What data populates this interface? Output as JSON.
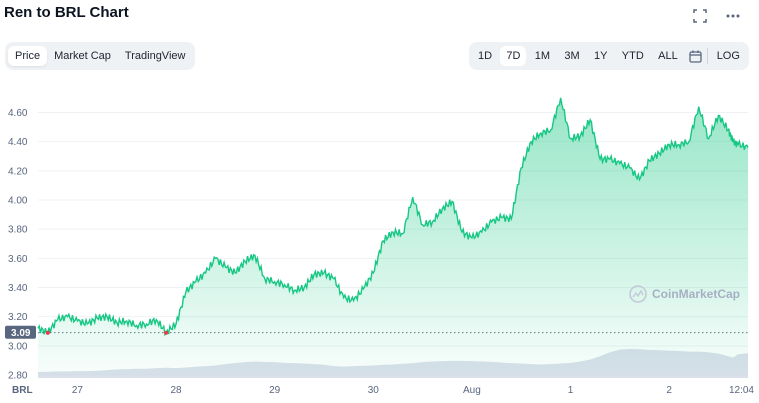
{
  "header": {
    "title": "Ren to BRL Chart",
    "expand_icon": "expand-icon",
    "more_icon": "more-icon"
  },
  "tabs": [
    "Price",
    "Market Cap",
    "TradingView"
  ],
  "active_tab": "Price",
  "ranges": [
    "1D",
    "7D",
    "1M",
    "3M",
    "1Y",
    "YTD",
    "ALL"
  ],
  "active_range": "7D",
  "calendar_icon": "calendar-icon",
  "log_label": "LOG",
  "watermark": "CoinMarketCap",
  "colors": {
    "line": "#16c784",
    "area_top": "#16c784",
    "volume": "#cfd6e4",
    "low_marker": "#ea3943"
  },
  "chart_data": {
    "type": "line",
    "title": "Ren to BRL Chart",
    "currency_label": "BRL",
    "ylim": [
      2.8,
      4.72
    ],
    "y_ticks": [
      "4.60",
      "4.40",
      "4.20",
      "4.00",
      "3.80",
      "3.60",
      "3.40",
      "3.20",
      "3.00",
      "2.80"
    ],
    "y_tick_values": [
      4.6,
      4.4,
      4.2,
      4.0,
      3.8,
      3.6,
      3.4,
      3.2,
      3.0,
      2.8
    ],
    "current_price_label": "3.09",
    "reference_value": 3.09,
    "x_ticks": [
      "27",
      "28",
      "29",
      "30",
      "Aug",
      "1",
      "2",
      "12:04"
    ],
    "x_tick_times": [
      0.4,
      1.4,
      2.4,
      3.4,
      4.4,
      5.4,
      6.4,
      7.0
    ],
    "xlim": [
      0,
      7.2
    ],
    "series": [
      {
        "t": [
          0,
          0.1,
          0.2,
          0.3,
          0.4,
          0.5,
          0.6,
          0.7,
          0.8,
          0.9,
          1.0,
          1.1,
          1.2,
          1.3,
          1.4,
          1.5,
          1.6,
          1.7,
          1.8,
          1.9,
          2.0,
          2.1,
          2.2,
          2.3,
          2.4,
          2.5,
          2.6,
          2.7,
          2.8,
          2.9,
          3.0,
          3.1,
          3.2,
          3.3,
          3.4,
          3.5,
          3.6,
          3.7,
          3.8,
          3.9,
          4.0,
          4.1,
          4.2,
          4.3,
          4.4,
          4.5,
          4.6,
          4.7,
          4.8,
          4.9,
          5.0,
          5.1,
          5.2,
          5.3,
          5.4,
          5.5,
          5.6,
          5.7,
          5.8,
          5.9,
          6.0,
          6.1,
          6.2,
          6.3,
          6.4,
          6.5,
          6.6,
          6.7,
          6.8,
          6.9,
          7.0,
          7.05,
          7.1,
          7.2
        ],
        "values": [
          3.12,
          3.09,
          3.18,
          3.2,
          3.17,
          3.15,
          3.19,
          3.2,
          3.16,
          3.17,
          3.14,
          3.15,
          3.18,
          3.09,
          3.15,
          3.37,
          3.44,
          3.5,
          3.6,
          3.54,
          3.5,
          3.58,
          3.62,
          3.46,
          3.44,
          3.42,
          3.38,
          3.4,
          3.49,
          3.5,
          3.46,
          3.33,
          3.31,
          3.39,
          3.5,
          3.72,
          3.78,
          3.77,
          4.02,
          3.83,
          3.85,
          3.94,
          3.99,
          3.78,
          3.74,
          3.78,
          3.85,
          3.88,
          3.87,
          4.22,
          4.4,
          4.46,
          4.48,
          4.7,
          4.42,
          4.44,
          4.55,
          4.28,
          4.28,
          4.25,
          4.22,
          4.14,
          4.27,
          4.32,
          4.38,
          4.38,
          4.4,
          4.64,
          4.42,
          4.58,
          4.48,
          4.4,
          4.38,
          4.36
        ]
      }
    ],
    "volume": [
      0.18,
      0.19,
      0.2,
      0.2,
      0.21,
      0.21,
      0.22,
      0.24,
      0.26,
      0.27,
      0.28,
      0.28,
      0.3,
      0.31,
      0.3,
      0.32,
      0.34,
      0.36,
      0.38,
      0.42,
      0.45,
      0.48,
      0.5,
      0.49,
      0.48,
      0.46,
      0.45,
      0.44,
      0.42,
      0.4,
      0.36,
      0.35,
      0.36,
      0.37,
      0.38,
      0.4,
      0.41,
      0.43,
      0.45,
      0.48,
      0.5,
      0.51,
      0.52,
      0.52,
      0.51,
      0.5,
      0.49,
      0.47,
      0.45,
      0.44,
      0.42,
      0.41,
      0.42,
      0.44,
      0.46,
      0.5,
      0.56,
      0.66,
      0.78,
      0.86,
      0.88,
      0.87,
      0.85,
      0.84,
      0.83,
      0.82,
      0.8,
      0.8,
      0.78,
      0.74,
      0.66,
      0.62,
      0.72,
      0.75
    ]
  }
}
